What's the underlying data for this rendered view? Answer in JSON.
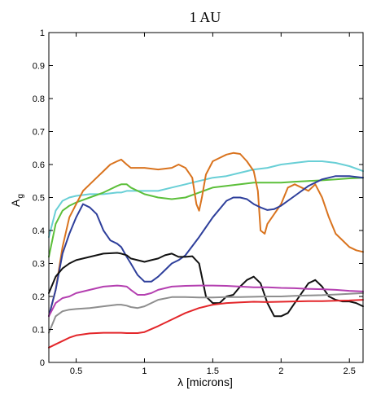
{
  "chart_data": {
    "type": "line",
    "title": "1 AU",
    "xlabel": "λ  [microns]",
    "ylabel": "A",
    "ylabel_subscript": "g",
    "xlim": [
      0.3,
      2.6
    ],
    "ylim": [
      0,
      1
    ],
    "xticks": [
      0.5,
      1,
      1.5,
      2,
      2.5
    ],
    "xtick_labels": [
      "0.5",
      "1",
      "1.5",
      "2",
      "2.5"
    ],
    "yticks": [
      0,
      0.1,
      0.2,
      0.3,
      0.4,
      0.5,
      0.6,
      0.7,
      0.8,
      0.9,
      1
    ],
    "ytick_labels": [
      "0",
      "0.1",
      "0.2",
      "0.3",
      "0.4",
      "0.5",
      "0.6",
      "0.7",
      "0.8",
      "0.9",
      "1"
    ],
    "grid": false,
    "series": [
      {
        "color": "#69cfd6",
        "x": [
          0.3,
          0.35,
          0.4,
          0.45,
          0.5,
          0.6,
          0.7,
          0.8,
          0.83,
          0.87,
          0.9,
          1.0,
          1.1,
          1.2,
          1.3,
          1.4,
          1.5,
          1.6,
          1.7,
          1.8,
          1.9,
          2.0,
          2.1,
          2.2,
          2.3,
          2.4,
          2.5,
          2.6
        ],
        "y": [
          0.38,
          0.46,
          0.49,
          0.5,
          0.505,
          0.51,
          0.51,
          0.515,
          0.515,
          0.52,
          0.52,
          0.52,
          0.52,
          0.53,
          0.54,
          0.55,
          0.56,
          0.565,
          0.575,
          0.585,
          0.59,
          0.6,
          0.605,
          0.61,
          0.61,
          0.605,
          0.595,
          0.58
        ]
      },
      {
        "color": "#5cbf3a",
        "x": [
          0.3,
          0.35,
          0.4,
          0.45,
          0.5,
          0.6,
          0.7,
          0.8,
          0.83,
          0.87,
          0.9,
          1.0,
          1.1,
          1.2,
          1.3,
          1.4,
          1.5,
          1.6,
          1.7,
          1.8,
          1.9,
          2.0,
          2.1,
          2.2,
          2.3,
          2.4,
          2.5,
          2.6
        ],
        "y": [
          0.32,
          0.42,
          0.46,
          0.475,
          0.485,
          0.5,
          0.515,
          0.535,
          0.54,
          0.54,
          0.53,
          0.51,
          0.5,
          0.495,
          0.5,
          0.515,
          0.53,
          0.535,
          0.54,
          0.545,
          0.545,
          0.545,
          0.548,
          0.55,
          0.552,
          0.555,
          0.558,
          0.56
        ]
      },
      {
        "color": "#d9731e",
        "x": [
          0.3,
          0.35,
          0.4,
          0.45,
          0.5,
          0.55,
          0.6,
          0.65,
          0.7,
          0.75,
          0.8,
          0.83,
          0.87,
          0.9,
          1.0,
          1.1,
          1.2,
          1.25,
          1.3,
          1.35,
          1.38,
          1.4,
          1.42,
          1.45,
          1.5,
          1.55,
          1.6,
          1.65,
          1.7,
          1.75,
          1.8,
          1.83,
          1.85,
          1.88,
          1.9,
          1.95,
          2.0,
          2.05,
          2.1,
          2.15,
          2.2,
          2.25,
          2.3,
          2.35,
          2.4,
          2.45,
          2.5,
          2.55,
          2.6
        ],
        "y": [
          0.14,
          0.22,
          0.35,
          0.44,
          0.48,
          0.52,
          0.54,
          0.56,
          0.58,
          0.6,
          0.61,
          0.615,
          0.6,
          0.59,
          0.59,
          0.585,
          0.59,
          0.6,
          0.59,
          0.56,
          0.48,
          0.46,
          0.5,
          0.57,
          0.61,
          0.62,
          0.63,
          0.635,
          0.632,
          0.61,
          0.58,
          0.52,
          0.4,
          0.39,
          0.42,
          0.45,
          0.48,
          0.53,
          0.54,
          0.53,
          0.52,
          0.54,
          0.5,
          0.44,
          0.39,
          0.37,
          0.35,
          0.34,
          0.335
        ]
      },
      {
        "color": "#2e3f9b",
        "x": [
          0.3,
          0.35,
          0.4,
          0.45,
          0.5,
          0.55,
          0.6,
          0.65,
          0.7,
          0.75,
          0.8,
          0.83,
          0.87,
          0.9,
          0.95,
          1.0,
          1.05,
          1.1,
          1.15,
          1.2,
          1.25,
          1.3,
          1.4,
          1.5,
          1.6,
          1.65,
          1.7,
          1.75,
          1.8,
          1.85,
          1.9,
          1.95,
          2.0,
          2.1,
          2.2,
          2.3,
          2.4,
          2.5,
          2.6
        ],
        "y": [
          0.14,
          0.22,
          0.33,
          0.39,
          0.44,
          0.48,
          0.47,
          0.45,
          0.4,
          0.37,
          0.36,
          0.35,
          0.32,
          0.3,
          0.265,
          0.245,
          0.245,
          0.26,
          0.28,
          0.3,
          0.31,
          0.325,
          0.38,
          0.44,
          0.49,
          0.5,
          0.5,
          0.495,
          0.48,
          0.47,
          0.462,
          0.465,
          0.475,
          0.505,
          0.535,
          0.555,
          0.565,
          0.565,
          0.56
        ]
      },
      {
        "color": "#111111",
        "x": [
          0.3,
          0.35,
          0.4,
          0.45,
          0.5,
          0.6,
          0.7,
          0.8,
          0.83,
          0.87,
          0.9,
          1.0,
          1.05,
          1.1,
          1.15,
          1.2,
          1.25,
          1.3,
          1.35,
          1.4,
          1.45,
          1.5,
          1.55,
          1.6,
          1.65,
          1.7,
          1.75,
          1.8,
          1.85,
          1.9,
          1.95,
          2.0,
          2.05,
          2.1,
          2.15,
          2.2,
          2.25,
          2.3,
          2.35,
          2.4,
          2.45,
          2.5,
          2.55,
          2.6
        ],
        "y": [
          0.21,
          0.26,
          0.285,
          0.3,
          0.31,
          0.32,
          0.33,
          0.332,
          0.33,
          0.325,
          0.315,
          0.305,
          0.31,
          0.315,
          0.325,
          0.33,
          0.32,
          0.32,
          0.322,
          0.3,
          0.2,
          0.18,
          0.18,
          0.2,
          0.205,
          0.23,
          0.25,
          0.26,
          0.24,
          0.18,
          0.14,
          0.14,
          0.15,
          0.18,
          0.21,
          0.24,
          0.25,
          0.23,
          0.2,
          0.19,
          0.185,
          0.185,
          0.18,
          0.17
        ]
      },
      {
        "color": "#b43fb0",
        "x": [
          0.3,
          0.35,
          0.4,
          0.45,
          0.5,
          0.6,
          0.7,
          0.8,
          0.83,
          0.87,
          0.9,
          0.95,
          1.0,
          1.05,
          1.1,
          1.2,
          1.3,
          1.4,
          1.5,
          1.6,
          1.7,
          1.8,
          1.9,
          2.0,
          2.1,
          2.2,
          2.3,
          2.4,
          2.5,
          2.6
        ],
        "y": [
          0.14,
          0.18,
          0.195,
          0.2,
          0.21,
          0.22,
          0.23,
          0.233,
          0.232,
          0.23,
          0.22,
          0.205,
          0.205,
          0.21,
          0.22,
          0.23,
          0.232,
          0.233,
          0.233,
          0.232,
          0.23,
          0.228,
          0.228,
          0.226,
          0.225,
          0.223,
          0.222,
          0.22,
          0.217,
          0.215
        ]
      },
      {
        "color": "#8e8e8e",
        "x": [
          0.3,
          0.35,
          0.4,
          0.45,
          0.5,
          0.6,
          0.7,
          0.8,
          0.83,
          0.87,
          0.9,
          0.95,
          1.0,
          1.05,
          1.1,
          1.2,
          1.3,
          1.4,
          1.5,
          1.6,
          1.7,
          1.8,
          1.9,
          2.0,
          2.1,
          2.2,
          2.3,
          2.4,
          2.5,
          2.6
        ],
        "y": [
          0.09,
          0.14,
          0.155,
          0.16,
          0.162,
          0.165,
          0.17,
          0.175,
          0.175,
          0.172,
          0.168,
          0.165,
          0.17,
          0.18,
          0.19,
          0.198,
          0.198,
          0.197,
          0.197,
          0.198,
          0.198,
          0.199,
          0.2,
          0.2,
          0.202,
          0.203,
          0.204,
          0.206,
          0.208,
          0.21
        ]
      },
      {
        "color": "#e3262a",
        "x": [
          0.3,
          0.35,
          0.4,
          0.45,
          0.5,
          0.6,
          0.7,
          0.8,
          0.83,
          0.87,
          0.9,
          0.95,
          1.0,
          1.1,
          1.2,
          1.3,
          1.4,
          1.5,
          1.6,
          1.7,
          1.8,
          1.9,
          2.0,
          2.1,
          2.2,
          2.3,
          2.4,
          2.5,
          2.6
        ],
        "y": [
          0.045,
          0.055,
          0.065,
          0.075,
          0.082,
          0.088,
          0.09,
          0.09,
          0.09,
          0.089,
          0.089,
          0.089,
          0.092,
          0.11,
          0.13,
          0.15,
          0.165,
          0.175,
          0.18,
          0.182,
          0.184,
          0.183,
          0.184,
          0.185,
          0.186,
          0.186,
          0.187,
          0.188,
          0.19
        ]
      }
    ]
  }
}
